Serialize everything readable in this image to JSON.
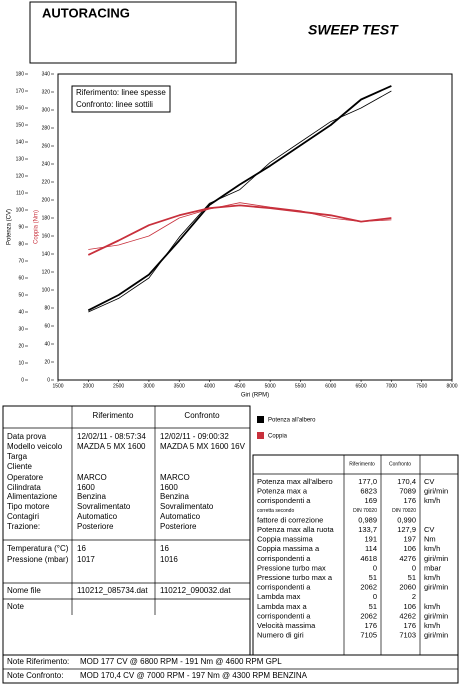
{
  "header": {
    "company": "AUTORACING",
    "test": "SWEEP TEST"
  },
  "chart_data": {
    "type": "line",
    "x_label": "Giri (RPM)",
    "y_label": "Potenza (CV)",
    "y2_label": "Coppia (Nm)",
    "annotations": [
      "Riferimento: linee spesse",
      "Confronto: linee sottili"
    ],
    "x": [
      2000,
      2500,
      3000,
      3500,
      4000,
      4500,
      5000,
      5500,
      6000,
      6500,
      7000
    ],
    "xlim": [
      1500,
      8000
    ],
    "xticks": [
      1500,
      2000,
      2500,
      3000,
      3500,
      4000,
      4500,
      5000,
      5500,
      6000,
      6500,
      7000,
      7500,
      8000
    ],
    "ylim": [
      0,
      180
    ],
    "yticks": [
      0,
      10,
      20,
      30,
      40,
      50,
      60,
      70,
      80,
      90,
      100,
      110,
      120,
      130,
      140,
      150,
      160,
      170,
      180
    ],
    "y2lim": [
      0,
      340
    ],
    "y2ticks": [
      0,
      20,
      40,
      60,
      80,
      100,
      120,
      140,
      160,
      180,
      200,
      220,
      240,
      260,
      280,
      300,
      320,
      340
    ],
    "series": [
      {
        "name": "Potenza all'albero",
        "color": "#000000",
        "riferimento": [
          41,
          50,
          62,
          82,
          103,
          115,
          126,
          138,
          150,
          165,
          173
        ],
        "confronto": [
          40,
          48,
          60,
          84,
          104,
          112,
          128,
          140,
          152,
          160,
          170
        ]
      },
      {
        "name": "Coppia",
        "color": "#c8303c",
        "axis": "y2",
        "riferimento": [
          139,
          155,
          172,
          183,
          191,
          194,
          191,
          187,
          183,
          176,
          180
        ],
        "confronto": [
          145,
          150,
          160,
          180,
          190,
          197,
          192,
          188,
          180,
          176,
          178
        ]
      }
    ]
  },
  "info_table": {
    "columns": [
      "Riferimento",
      "Confronto"
    ],
    "rows": [
      [
        "Data prova",
        "12/02/11 - 08:57:34",
        "12/02/11 - 09:00:32"
      ],
      [
        "Modello veicolo",
        "MAZDA 5 MX 1600",
        "MAZDA 5 MX 1600 16V"
      ],
      [
        "Targa"
      ],
      [
        "Cliente"
      ],
      [
        "Operatore",
        "MARCO",
        "MARCO"
      ],
      [
        "Cilindrata",
        "1600",
        "1600"
      ],
      [
        "Alimentazione",
        "Benzina",
        "Benzina"
      ],
      [
        "Tipo motore",
        "Sovralimentato",
        "Sovralimentato"
      ],
      [
        "Contagiri",
        "Automatico",
        "Automatico"
      ],
      [
        "Trazione:",
        "Posteriore",
        "Posteriore"
      ],
      [
        "Temperatura (°C)",
        "16",
        "16"
      ],
      [
        "Pressione (mbar)",
        "1017",
        "1016"
      ],
      [
        "Nome file",
        "110212_085734.dat",
        "110212_090032.dat"
      ],
      [
        "Note"
      ]
    ]
  },
  "results": {
    "columns": [
      "Riferimento",
      "Confronto"
    ],
    "rows": [
      [
        "Potenza max all'albero",
        "177,0",
        "170,4",
        "CV"
      ],
      [
        "Potenza max a",
        "6823",
        "7089",
        "giri/min"
      ],
      [
        "corrispondenti a",
        "169",
        "176",
        "km/h"
      ],
      [
        "corretta secondo",
        "DIN 70020",
        "DIN 70020"
      ],
      [
        "fattore di correzione",
        "0,989",
        "0,990"
      ],
      [
        "Potenza max alla ruota",
        "133,7",
        "127,9",
        "CV"
      ],
      [
        "Coppia massima",
        "191",
        "197",
        "Nm"
      ],
      [
        "Coppia massima a",
        "114",
        "106",
        "km/h"
      ],
      [
        "corrispondenti a",
        "4618",
        "4276",
        "giri/min"
      ],
      [
        "Pressione turbo max",
        "0",
        "0",
        "mbar"
      ],
      [
        "Pressione turbo max a",
        "51",
        "51",
        "km/h"
      ],
      [
        "corrispondenti a",
        "2062",
        "2060",
        "giri/min"
      ],
      [
        "Lambda max",
        "0",
        "2"
      ],
      [
        "Lambda max a",
        "51",
        "106",
        "km/h"
      ],
      [
        "corrispondenti a",
        "2062",
        "4262",
        "giri/min"
      ],
      [
        "Velocità massima",
        "176",
        "176",
        "km/h"
      ],
      [
        "Numero di giri",
        "7105",
        "7103",
        "giri/min"
      ]
    ]
  },
  "notes": [
    {
      "label": "Note Riferimento:",
      "text": "MOD 177 CV @ 6800 RPM - 191 Nm @ 4600 RPM  GPL"
    },
    {
      "label": "Note Confronto:",
      "text": "MOD 170,4 CV @ 7000 RPM - 197 Nm @ 4300 RPM  BENZINA"
    }
  ]
}
